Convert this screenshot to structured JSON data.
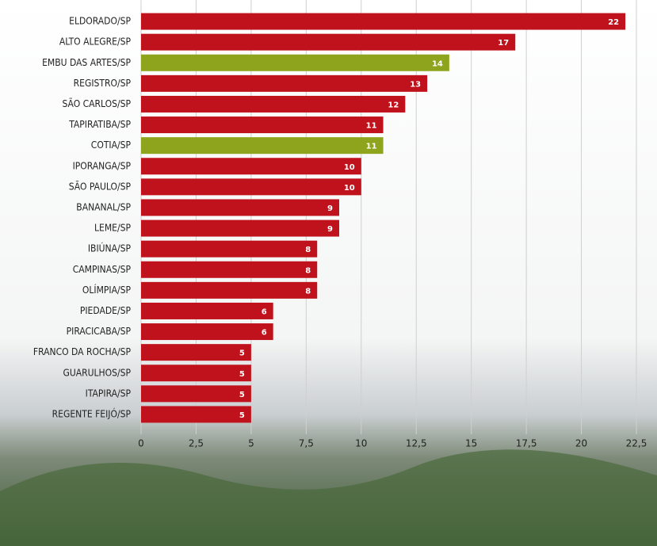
{
  "chart_data": {
    "type": "bar",
    "orientation": "horizontal",
    "categories": [
      "ELDORADO/SP",
      "ALTO ALEGRE/SP",
      "EMBU DAS ARTES/SP",
      "REGISTRO/SP",
      "SÃO CARLOS/SP",
      "TAPIRATIBA/SP",
      "COTIA/SP",
      "IPORANGA/SP",
      "SÃO PAULO/SP",
      "BANANAL/SP",
      "LEME/SP",
      "IBIÚNA/SP",
      "CAMPINAS/SP",
      "OLÍMPIA/SP",
      "PIEDADE/SP",
      "PIRACICABA/SP",
      "FRANCO DA ROCHA/SP",
      "GUARULHOS/SP",
      "ITAPIRA/SP",
      "REGENTE FEIJÓ/SP"
    ],
    "values": [
      22,
      17,
      14,
      13,
      12,
      11,
      11,
      10,
      10,
      9,
      9,
      8,
      8,
      8,
      6,
      6,
      5,
      5,
      5,
      5
    ],
    "colors": [
      "#c0121c",
      "#c0121c",
      "#8ea41c",
      "#c0121c",
      "#c0121c",
      "#c0121c",
      "#8ea41c",
      "#c0121c",
      "#c0121c",
      "#c0121c",
      "#c0121c",
      "#c0121c",
      "#c0121c",
      "#c0121c",
      "#c0121c",
      "#c0121c",
      "#c0121c",
      "#c0121c",
      "#c0121c",
      "#c0121c"
    ],
    "xlim": [
      0,
      22.5
    ],
    "xticks": [
      0,
      {
        "value": 2.5,
        "label": "2,5"
      },
      5,
      {
        "value": 7.5,
        "label": "7,5"
      },
      10,
      {
        "value": 12.5,
        "label": "12,5"
      },
      15,
      {
        "value": 17.5,
        "label": "17,5"
      },
      20,
      {
        "value": 22.5,
        "label": "22,5"
      }
    ],
    "grid": true
  }
}
